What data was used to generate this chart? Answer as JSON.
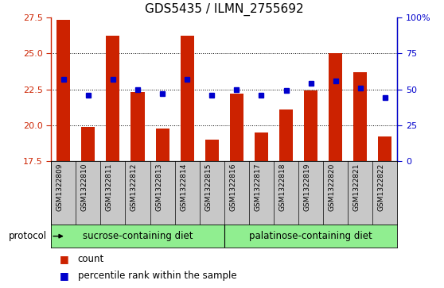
{
  "title": "GDS5435 / ILMN_2755692",
  "samples": [
    "GSM1322809",
    "GSM1322810",
    "GSM1322811",
    "GSM1322812",
    "GSM1322813",
    "GSM1322814",
    "GSM1322815",
    "GSM1322816",
    "GSM1322817",
    "GSM1322818",
    "GSM1322819",
    "GSM1322820",
    "GSM1322821",
    "GSM1322822"
  ],
  "counts": [
    27.3,
    19.9,
    26.2,
    22.3,
    19.8,
    26.2,
    19.0,
    22.2,
    19.5,
    21.1,
    22.4,
    25.0,
    23.7,
    19.2
  ],
  "percentile_ranks": [
    57,
    46,
    57,
    50,
    47,
    57,
    46,
    50,
    46,
    49,
    54,
    56,
    51,
    44
  ],
  "y_min": 17.5,
  "y_max": 27.5,
  "y_ticks": [
    17.5,
    20.0,
    22.5,
    25.0,
    27.5
  ],
  "right_y_ticks": [
    0,
    25,
    50,
    75,
    100
  ],
  "right_y_labels": [
    "0",
    "25",
    "50",
    "75",
    "100%"
  ],
  "bar_color": "#cc2200",
  "dot_color": "#0000cc",
  "sucrose_label": "sucrose-containing diet",
  "palatinose_label": "palatinose-containing diet",
  "protocol_label": "protocol",
  "group_color": "#90ee90",
  "tick_area_color": "#c8c8c8",
  "title_fontsize": 11,
  "tick_fontsize": 8,
  "sample_fontsize": 6.5,
  "label_fontsize": 8.5,
  "legend_fontsize": 8.5,
  "sucrose_count": 7,
  "palatinose_count": 7
}
